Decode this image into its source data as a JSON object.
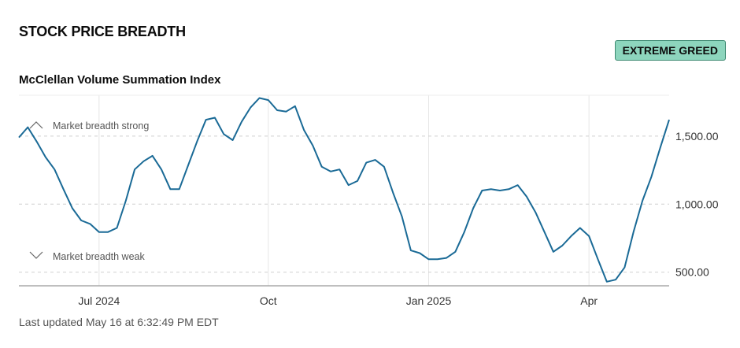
{
  "header": {
    "title": "STOCK PRICE BREADTH",
    "badge": "EXTREME GREED"
  },
  "chart_data": {
    "type": "line",
    "title": "McClellan Volume Summation Index",
    "categories": [
      null,
      null,
      null,
      null,
      null,
      null,
      null,
      null,
      null,
      "Jul 2024",
      null,
      null,
      null,
      null,
      null,
      null,
      null,
      null,
      null,
      null,
      null,
      null,
      null,
      null,
      null,
      null,
      null,
      null,
      "Oct",
      null,
      null,
      null,
      null,
      null,
      null,
      null,
      null,
      null,
      null,
      null,
      null,
      null,
      null,
      null,
      null,
      null,
      "Jan 2025",
      null,
      null,
      null,
      null,
      null,
      null,
      null,
      null,
      null,
      null,
      null,
      null,
      null,
      null,
      null,
      null,
      null,
      "Apr",
      null,
      null,
      null,
      null,
      null,
      null,
      null,
      null,
      null
    ],
    "values": [
      1490,
      1565,
      1460,
      1345,
      1255,
      1110,
      970,
      880,
      855,
      795,
      795,
      825,
      1025,
      1255,
      1315,
      1355,
      1255,
      1110,
      1110,
      1285,
      1460,
      1620,
      1635,
      1515,
      1470,
      1605,
      1710,
      1780,
      1765,
      1690,
      1680,
      1720,
      1545,
      1430,
      1275,
      1240,
      1255,
      1140,
      1170,
      1305,
      1325,
      1275,
      1085,
      910,
      660,
      640,
      595,
      595,
      605,
      650,
      795,
      970,
      1100,
      1110,
      1100,
      1110,
      1140,
      1055,
      940,
      795,
      650,
      695,
      765,
      825,
      765,
      595,
      430,
      445,
      535,
      795,
      1025,
      1200,
      1415,
      1620
    ],
    "color": "#1a6a96",
    "ylim": [
      400,
      1800
    ],
    "yticks": [
      {
        "value": 500,
        "label": "500.00"
      },
      {
        "value": 1000,
        "label": "1,000.00"
      },
      {
        "value": 1500,
        "label": "1,500.00"
      }
    ],
    "grid": true,
    "annotations": [
      "Market breadth strong",
      "Market breadth weak"
    ]
  },
  "footer": {
    "text": "Last updated May 16 at 6:32:49 PM EDT"
  }
}
